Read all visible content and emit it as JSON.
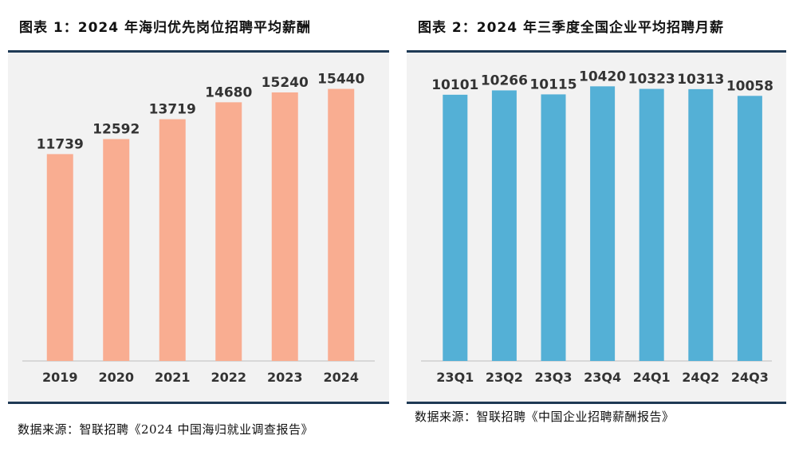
{
  "charts": [
    {
      "title": "图表 1：2024 年海归优先岗位招聘平均薪酬",
      "source": "数据来源：智联招聘《2024 中国海归就业调查报告》",
      "bar_color": "#f9ad91"
    },
    {
      "title": "图表 2：2024 年三季度全国企业平均招聘月薪",
      "source": "数据来源：智联招聘《中国企业招聘薪酬报告》",
      "bar_color": "#54b0d6"
    }
  ],
  "chart_data": [
    {
      "type": "bar",
      "title": "2024 年海归优先岗位招聘平均薪酬",
      "categories": [
        "2019",
        "2020",
        "2021",
        "2022",
        "2023",
        "2024"
      ],
      "values": [
        11739,
        12592,
        13719,
        14680,
        15240,
        15440
      ],
      "xlabel": "",
      "ylabel": "",
      "ylim": [
        0,
        17500
      ],
      "grid": false,
      "data_labels": true
    },
    {
      "type": "bar",
      "title": "2024 年三季度全国企业平均招聘月薪",
      "categories": [
        "23Q1",
        "23Q2",
        "23Q3",
        "23Q4",
        "24Q1",
        "24Q2",
        "24Q3"
      ],
      "values": [
        10101,
        10266,
        10115,
        10420,
        10323,
        10313,
        10058
      ],
      "xlabel": "",
      "ylabel": "",
      "ylim": [
        0,
        11700
      ],
      "grid": false,
      "data_labels": true
    }
  ]
}
